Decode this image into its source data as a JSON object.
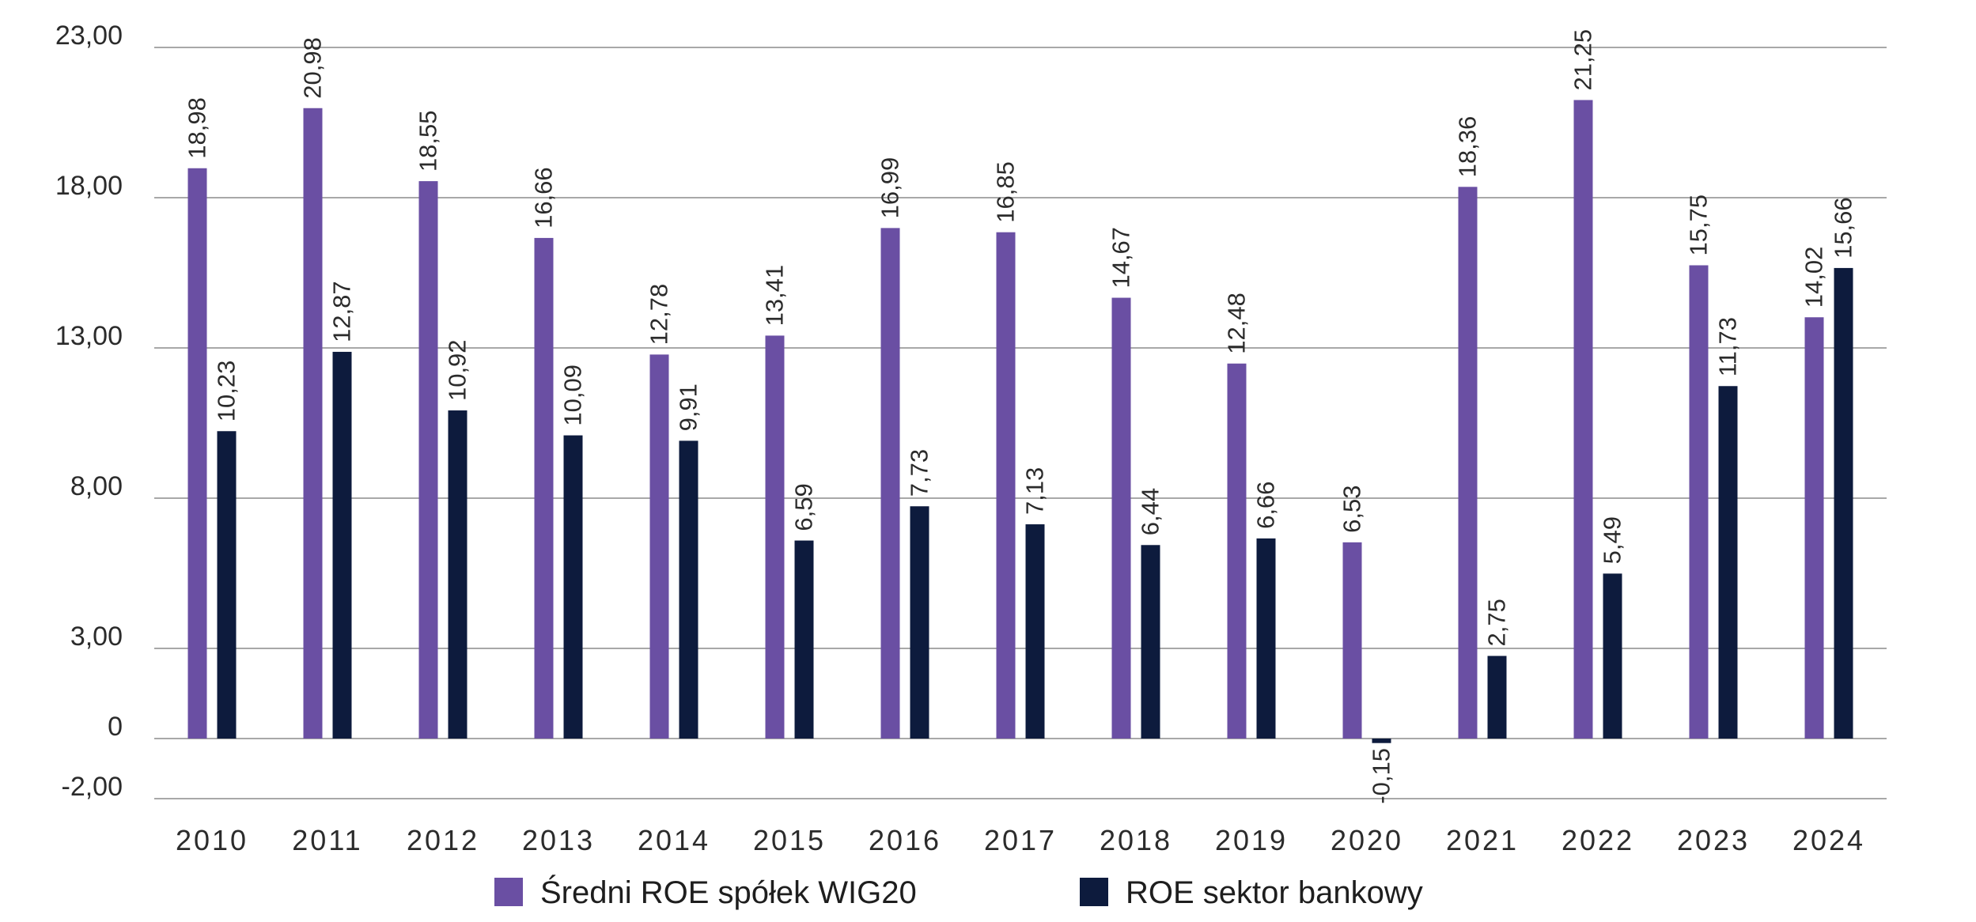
{
  "chart_data": {
    "type": "bar",
    "title": "",
    "xlabel": "",
    "ylabel": "",
    "ylim": [
      -2,
      23
    ],
    "yticks": [
      23,
      18,
      13,
      8,
      3,
      0,
      -2
    ],
    "ytick_labels": [
      "23,00",
      "18,00",
      "13,00",
      "8,00",
      "3,00",
      "0",
      "-2,00"
    ],
    "categories": [
      "2010",
      "2011",
      "2012",
      "2013",
      "2014",
      "2015",
      "2016",
      "2017",
      "2018",
      "2019",
      "2020",
      "2021",
      "2022",
      "2023",
      "2024"
    ],
    "series": [
      {
        "name": "Średni ROE spółek WIG20",
        "color": "#6a4fa3",
        "values": [
          18.98,
          20.98,
          18.55,
          16.66,
          12.78,
          13.41,
          16.99,
          16.85,
          14.67,
          12.48,
          6.53,
          18.36,
          21.25,
          15.75,
          14.02
        ],
        "labels": [
          "18,98",
          "20,98",
          "18,55",
          "16,66",
          "12,78",
          "13,41",
          "16,99",
          "16,85",
          "14,67",
          "12,48",
          "6,53",
          "18,36",
          "21,25",
          "15,75",
          "14,02"
        ]
      },
      {
        "name": "ROE sektor bankowy",
        "color": "#0d1b3d",
        "values": [
          10.23,
          12.87,
          10.92,
          10.09,
          9.91,
          6.59,
          7.73,
          7.13,
          6.44,
          6.66,
          -0.15,
          2.75,
          5.49,
          11.73,
          15.66
        ],
        "labels": [
          "10,23",
          "12,87",
          "10,92",
          "10,09",
          "9,91",
          "6,59",
          "7,73",
          "7,13",
          "6,44",
          "6,66",
          "-0,15",
          "2,75",
          "5,49",
          "11,73",
          "15,66"
        ]
      }
    ],
    "grid": true,
    "legend_position": "bottom"
  }
}
